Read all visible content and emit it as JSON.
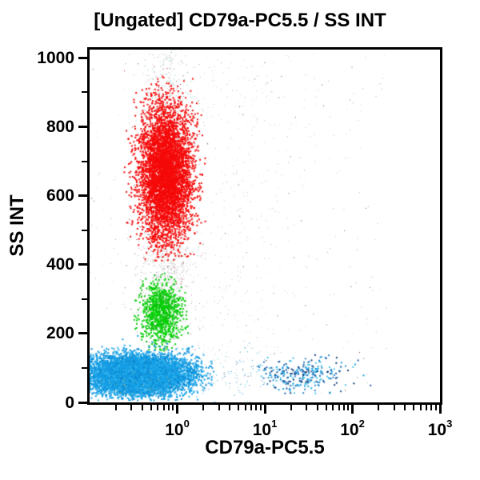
{
  "chart_data": {
    "type": "scatter",
    "subtype": "flow-cytometry-dot-plot",
    "title": "[Ungated] CD79a-PC5.5 / SS INT",
    "xlabel": "CD79a-PC5.5",
    "ylabel": "SS INT",
    "background_color": "#ffffff",
    "frame_color": "#000000",
    "grid": false,
    "legend": false,
    "x_axis": {
      "scale": "log",
      "min": 0.1,
      "max": 1000,
      "decade_label_exponents": [
        0,
        1,
        2,
        3
      ],
      "minor_tick_multiples": [
        2,
        3,
        4,
        5,
        6,
        7,
        8,
        9
      ]
    },
    "y_axis": {
      "scale": "linear",
      "min": 0,
      "max": 1024,
      "major_ticks": [
        0,
        200,
        400,
        600,
        800,
        1000
      ],
      "minor_ticks": [
        100,
        300,
        500,
        700,
        900
      ]
    },
    "populations": [
      {
        "name": "debris-haze-wide",
        "colors": [
          "#cfcfcf",
          "#c0c0c0",
          "#a8a8a8"
        ],
        "size": 1,
        "count": 320,
        "x": {
          "dist": "uniform-log10",
          "min": -1.0,
          "max": 2.4
        },
        "y": {
          "dist": "uniform",
          "min": 15,
          "max": 1015
        }
      },
      {
        "name": "debris-column-main",
        "colors": [
          "#c8c8c8",
          "#b4b4b4",
          "#9a9a9a"
        ],
        "size": 1,
        "count": 750,
        "x": {
          "dist": "normal-log10",
          "mean": -0.12,
          "sd": 0.16
        },
        "y": {
          "dist": "uniform",
          "min": 140,
          "max": 1018
        }
      },
      {
        "name": "debris-column-mid",
        "colors": [
          "#d2d2d2",
          "#c2c2c2"
        ],
        "size": 1,
        "count": 300,
        "x": {
          "dist": "normal-log10",
          "mean": 0.7,
          "sd": 0.33
        },
        "y": {
          "dist": "uniform",
          "min": 30,
          "max": 1010
        }
      },
      {
        "name": "debris-blob-between-red-green",
        "colors": [
          "#bdbdbd",
          "#a5a5a5"
        ],
        "size": 1,
        "count": 200,
        "x": {
          "dist": "normal-log10",
          "mean": -0.13,
          "sd": 0.13
        },
        "y": {
          "dist": "normal",
          "mean": 385,
          "sd": 38
        }
      },
      {
        "name": "dark-specks",
        "colors": [
          "#666666",
          "#4a4a4a"
        ],
        "size": 1,
        "count": 70,
        "x": {
          "dist": "uniform-log10",
          "min": -1.0,
          "max": 2.2
        },
        "y": {
          "dist": "uniform",
          "min": 20,
          "max": 1000
        }
      },
      {
        "name": "teal-specks-top",
        "colors": [
          "#63c0ae",
          "#8fd4c6"
        ],
        "size": 1,
        "count": 90,
        "x": {
          "dist": "normal-log10",
          "mean": -0.12,
          "sd": 0.16
        },
        "y": {
          "dist": "normal",
          "mean": 905,
          "sd": 75
        }
      },
      {
        "name": "maroon-ring",
        "colors": [
          "#8a1022",
          "#a11326"
        ],
        "size": 1,
        "count": 160,
        "x": {
          "dist": "normal-log10",
          "mean": -0.13,
          "sd": 0.19
        },
        "y": {
          "dist": "normal",
          "mean": 655,
          "sd": 160
        }
      },
      {
        "name": "granulocytes-red",
        "colors": [
          "#f50a0a"
        ],
        "size": 2,
        "count": 5200,
        "x": {
          "dist": "normal-log10",
          "mean": -0.13,
          "sd": 0.15,
          "clip": [
            -0.62,
            0.33
          ]
        },
        "y": {
          "dist": "normal",
          "mean": 662,
          "sd": 100,
          "clip": [
            408,
            948
          ]
        }
      },
      {
        "name": "pink-specks",
        "colors": [
          "#f263c8",
          "#e98fd4"
        ],
        "size": 1,
        "count": 30,
        "x": {
          "dist": "normal-log10",
          "mean": -0.18,
          "sd": 0.28
        },
        "y": {
          "dist": "uniform",
          "min": 150,
          "max": 460
        }
      },
      {
        "name": "monocytes-green",
        "colors": [
          "#00d400",
          "#11c211"
        ],
        "size": 2,
        "count": 950,
        "x": {
          "dist": "normal-log10",
          "mean": -0.18,
          "sd": 0.12,
          "clip": [
            -0.5,
            0.15
          ]
        },
        "y": {
          "dist": "normal",
          "mean": 262,
          "sd": 45,
          "clip": [
            150,
            380
          ]
        }
      },
      {
        "name": "lymphocytes-blue-main",
        "colors": [
          "#149fe6",
          "#149fe6",
          "#149fe6",
          "#0d87cf",
          "#35b5ee"
        ],
        "size": 2,
        "count": 7800,
        "x": {
          "dist": "normal-log10",
          "mean": -0.45,
          "sd": 0.3,
          "clip": [
            -1.01,
            0.42
          ]
        },
        "y": {
          "dist": "normal",
          "mean": 80,
          "sd": 28,
          "clip": [
            6,
            195
          ]
        }
      },
      {
        "name": "scatter-between-blue",
        "colors": [
          "#2a9bd8",
          "#1a6fb5",
          "#57c4e8"
        ],
        "size": 1,
        "count": 90,
        "x": {
          "dist": "uniform-log10",
          "min": 0.2,
          "max": 1.0
        },
        "y": {
          "dist": "normal",
          "mean": 85,
          "sd": 35
        }
      },
      {
        "name": "b-cells-blue-cd79a-pos",
        "colors": [
          "#19a0e0",
          "#2f84c8",
          "#1b5fa8",
          "#4ac3e8",
          "#123f7a"
        ],
        "size": 2,
        "count": 270,
        "x": {
          "dist": "normal-log10",
          "mean": 1.43,
          "sd": 0.26,
          "clip": [
            0.9,
            2.35
          ]
        },
        "y": {
          "dist": "normal",
          "mean": 78,
          "sd": 26,
          "clip": [
            15,
            175
          ]
        }
      },
      {
        "name": "orange-specks-bottom",
        "colors": [
          "#f2b31c",
          "#e8cf3a"
        ],
        "size": 1,
        "count": 22,
        "x": {
          "dist": "normal-log10",
          "mean": -0.5,
          "sd": 0.28
        },
        "y": {
          "dist": "normal",
          "mean": 42,
          "sd": 20
        }
      }
    ]
  }
}
